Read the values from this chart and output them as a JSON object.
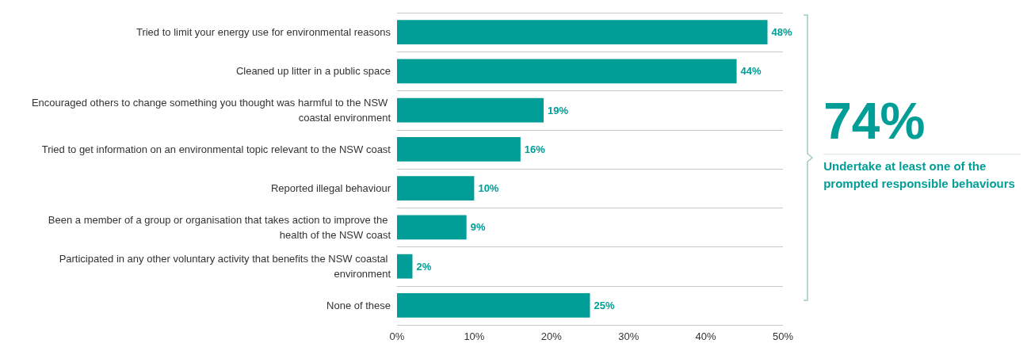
{
  "chart_data": {
    "type": "bar",
    "orientation": "horizontal",
    "categories": [
      "Tried to limit your energy use for environmental reasons",
      "Cleaned up litter in a public space",
      "Encouraged others to change something you thought was harmful to the NSW coastal environment",
      "Tried to get information on an environmental topic relevant to the NSW coast",
      "Reported illegal behaviour",
      "Been a member of a group or organisation that takes action to improve the health of the NSW coast",
      "Participated in any other voluntary activity that benefits the NSW coastal environment",
      "None of these"
    ],
    "values": [
      48,
      44,
      19,
      16,
      10,
      9,
      2,
      25
    ],
    "value_labels": [
      "48%",
      "44%",
      "19%",
      "16%",
      "10%",
      "9%",
      "2%",
      "25%"
    ],
    "color": "#009e96",
    "xlim": [
      0,
      50
    ],
    "xticks": [
      {
        "value": 0,
        "label": "0%"
      },
      {
        "value": 10,
        "label": "10%"
      },
      {
        "value": 20,
        "label": "20%"
      },
      {
        "value": 30,
        "label": "30%"
      },
      {
        "value": 40,
        "label": "40%"
      },
      {
        "value": 50,
        "label": "50%"
      }
    ],
    "grid": "y",
    "annotations": [
      "74%",
      "Undertake at least one of the prompted responsible behaviours"
    ]
  }
}
